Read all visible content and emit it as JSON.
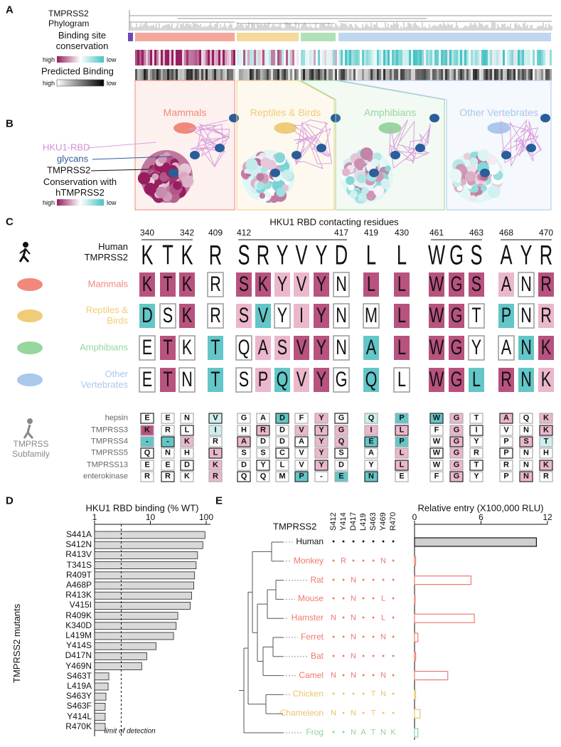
{
  "panel_labels": [
    "A",
    "B",
    "C",
    "D",
    "E"
  ],
  "panel_a": {
    "phylogram_label": "TMPRSS2 Phylogram",
    "conservation_label": "Binding site conservation",
    "conservation_high": "high",
    "conservation_low": "low",
    "binding_label": "Predicted Binding",
    "binding_high": "high",
    "binding_low": "low"
  },
  "panel_b": {
    "groups": [
      "Mammals",
      "Reptiles & Birds",
      "Amphibians",
      "Other Vertebrates"
    ],
    "group_colors": [
      "#f0897c",
      "#f0cc78",
      "#97d69e",
      "#a9c8ea"
    ],
    "hku1_label": "HKU1-RBD",
    "glycans_label": "glycans",
    "tmprss2_label": "TMPRSS2",
    "conservation_label": "Conservation with hTMPRSS2",
    "high": "high",
    "low": "low"
  },
  "panel_c": {
    "title": "HKU1 RBD contacting residues",
    "positions": [
      340,
      null,
      342,
      409,
      412,
      null,
      null,
      null,
      null,
      417,
      419,
      430,
      461,
      null,
      463,
      468,
      null,
      470
    ],
    "human_label": "Human TMPRSS2",
    "human": [
      "K",
      "T",
      "K",
      "R",
      "S",
      "R",
      "Y",
      "V",
      "Y",
      "D",
      "L",
      "L",
      "W",
      "G",
      "S",
      "A",
      "Y",
      "R"
    ],
    "groups": [
      {
        "name": "Mammals",
        "residues": [
          "K",
          "T",
          "K",
          "R",
          "S",
          "K",
          "Y",
          "V",
          "Y",
          "N",
          "L",
          "L",
          "W",
          "G",
          "S",
          "A",
          "N",
          "R"
        ]
      },
      {
        "name": "Reptiles & Birds",
        "residues": [
          "D",
          "S",
          "K",
          "R",
          "S",
          "V",
          "Y",
          "I",
          "Y",
          "N",
          "M",
          "L",
          "W",
          "G",
          "T",
          "P",
          "N",
          "R"
        ]
      },
      {
        "name": "Amphibians",
        "residues": [
          "E",
          "T",
          "K",
          "T",
          "Q",
          "A",
          "S",
          "V",
          "Y",
          "N",
          "A",
          "L",
          "W",
          "G",
          "Y",
          "A",
          "N",
          "K"
        ]
      },
      {
        "name": "Other Vertebrates",
        "residues": [
          "E",
          "T",
          "N",
          "T",
          "S",
          "P",
          "Q",
          "V",
          "Y",
          "G",
          "Q",
          "L",
          "W",
          "G",
          "L",
          "R",
          "N",
          "K"
        ]
      }
    ],
    "subfamily_label": "TMPRSS Subfamily",
    "subfamily": [
      {
        "name": "hepsin",
        "residues": [
          "E",
          "E",
          "N",
          "V",
          "G",
          "A",
          "D",
          "F",
          "Y",
          "G",
          "Q",
          "P",
          "W",
          "G",
          "T",
          "A",
          "Q",
          "K"
        ]
      },
      {
        "name": "TMPRSS3",
        "residues": [
          "K",
          "R",
          "L",
          "I",
          "H",
          "R",
          "D",
          "V",
          "Y",
          "G",
          "I",
          "L",
          "F",
          "G",
          "I",
          "V",
          "N",
          "K"
        ]
      },
      {
        "name": "TMPRSS4",
        "residues": [
          "-",
          "-",
          "K",
          "R",
          "A",
          "D",
          "D",
          "A",
          "Y",
          "Q",
          "E",
          "P",
          "W",
          "G",
          "Y",
          "P",
          "S",
          "T"
        ]
      },
      {
        "name": "TMPRSS5",
        "residues": [
          "Q",
          "N",
          "H",
          "L",
          "S",
          "S",
          "C",
          "V",
          "Y",
          "S",
          "A",
          "L",
          "W",
          "G",
          "R",
          "P",
          "N",
          "H"
        ]
      },
      {
        "name": "TMPRSS13",
        "residues": [
          "E",
          "E",
          "D",
          "K",
          "D",
          "Y",
          "L",
          "V",
          "Y",
          "D",
          "Y",
          "L",
          "W",
          "G",
          "T",
          "R",
          "N",
          "K"
        ]
      },
      {
        "name": "enterokinase",
        "residues": [
          "R",
          "R",
          "K",
          "R",
          "Q",
          "Q",
          "M",
          "P",
          "-",
          "E",
          "N",
          "E",
          "F",
          "G",
          "Y",
          "P",
          "N",
          "R"
        ]
      }
    ]
  },
  "chart_data": [
    {
      "type": "bar",
      "orientation": "horizontal",
      "title": "HKU1 RBD binding (% WT)",
      "y_label": "TMPRSS2 mutants",
      "categories": [
        "S441A",
        "S412N",
        "R413V",
        "T341S",
        "R409T",
        "A468P",
        "R413K",
        "V415I",
        "R409K",
        "K340D",
        "L419M",
        "Y414S",
        "D417N",
        "Y469N",
        "S463T",
        "L419A",
        "S463Y",
        "S463F",
        "Y414L",
        "R470K"
      ],
      "values": [
        95,
        87,
        70,
        66,
        62,
        60,
        55,
        52,
        31,
        29,
        26,
        12.6,
        8.6,
        7,
        1.8,
        1.75,
        1.6,
        1.55,
        1.55,
        1.55
      ],
      "color": "#d9d9d9",
      "xlim": [
        1,
        100
      ],
      "xticks": [
        1,
        10,
        100
      ],
      "log_scale": true,
      "annotation": {
        "value": 3,
        "label": "limit of detection"
      }
    },
    {
      "type": "bar",
      "orientation": "horizontal",
      "title": "Relative entry (X100,000 RLU)",
      "table_label": "TMPRSS2",
      "columns": [
        "S412",
        "Y414",
        "D417",
        "L419",
        "S463",
        "Y469",
        "R470"
      ],
      "categories": [
        "Human",
        "Monkey",
        "Rat",
        "Mouse",
        "Hamster",
        "Ferret",
        "Bat",
        "Camel",
        "Chicken",
        "Chameleon",
        "Frog"
      ],
      "residues": [
        [
          "•",
          "•",
          "•",
          "•",
          "•",
          "•",
          "•"
        ],
        [
          "•",
          "R",
          "•",
          "•",
          "•",
          "N",
          "•"
        ],
        [
          "•",
          "•",
          "N",
          "•",
          "•",
          "•",
          "•"
        ],
        [
          "•",
          "•",
          "N",
          "•",
          "•",
          "L",
          "•"
        ],
        [
          "N",
          "•",
          "N",
          "•",
          "•",
          "L",
          "•"
        ],
        [
          "•",
          "•",
          "N",
          "•",
          "•",
          "N",
          "•"
        ],
        [
          "•",
          "•",
          "N",
          "•",
          "•",
          "•",
          "•"
        ],
        [
          "N",
          "•",
          "N",
          "•",
          "•",
          "N",
          "•"
        ],
        [
          "•",
          "•",
          "•",
          "•",
          "T",
          "N",
          "•"
        ],
        [
          "N",
          "•",
          "N",
          "•",
          "T",
          "•",
          "•"
        ],
        [
          "•",
          "•",
          "N",
          "A",
          "T",
          "N",
          "K"
        ]
      ],
      "values": [
        11.0,
        0.1,
        5.1,
        0.05,
        5.4,
        0.3,
        0.1,
        3.0,
        0.1,
        0.5,
        0.3
      ],
      "colors": [
        "#111111",
        "#ee7a6c",
        "#ee7a6c",
        "#ee7a6c",
        "#ee7a6c",
        "#ee7a6c",
        "#ee7a6c",
        "#ee7a6c",
        "#e9c46a",
        "#e9c46a",
        "#8fd39a"
      ],
      "fills": [
        "#d0d0d0",
        "#ffffff",
        "#ffffff",
        "#ffffff",
        "#ffffff",
        "#ffffff",
        "#ffffff",
        "#ffffff",
        "#ffffff",
        "#ffffff",
        "#ffffff"
      ],
      "xlim": [
        0,
        12
      ],
      "xticks": [
        0,
        6,
        12
      ]
    }
  ]
}
